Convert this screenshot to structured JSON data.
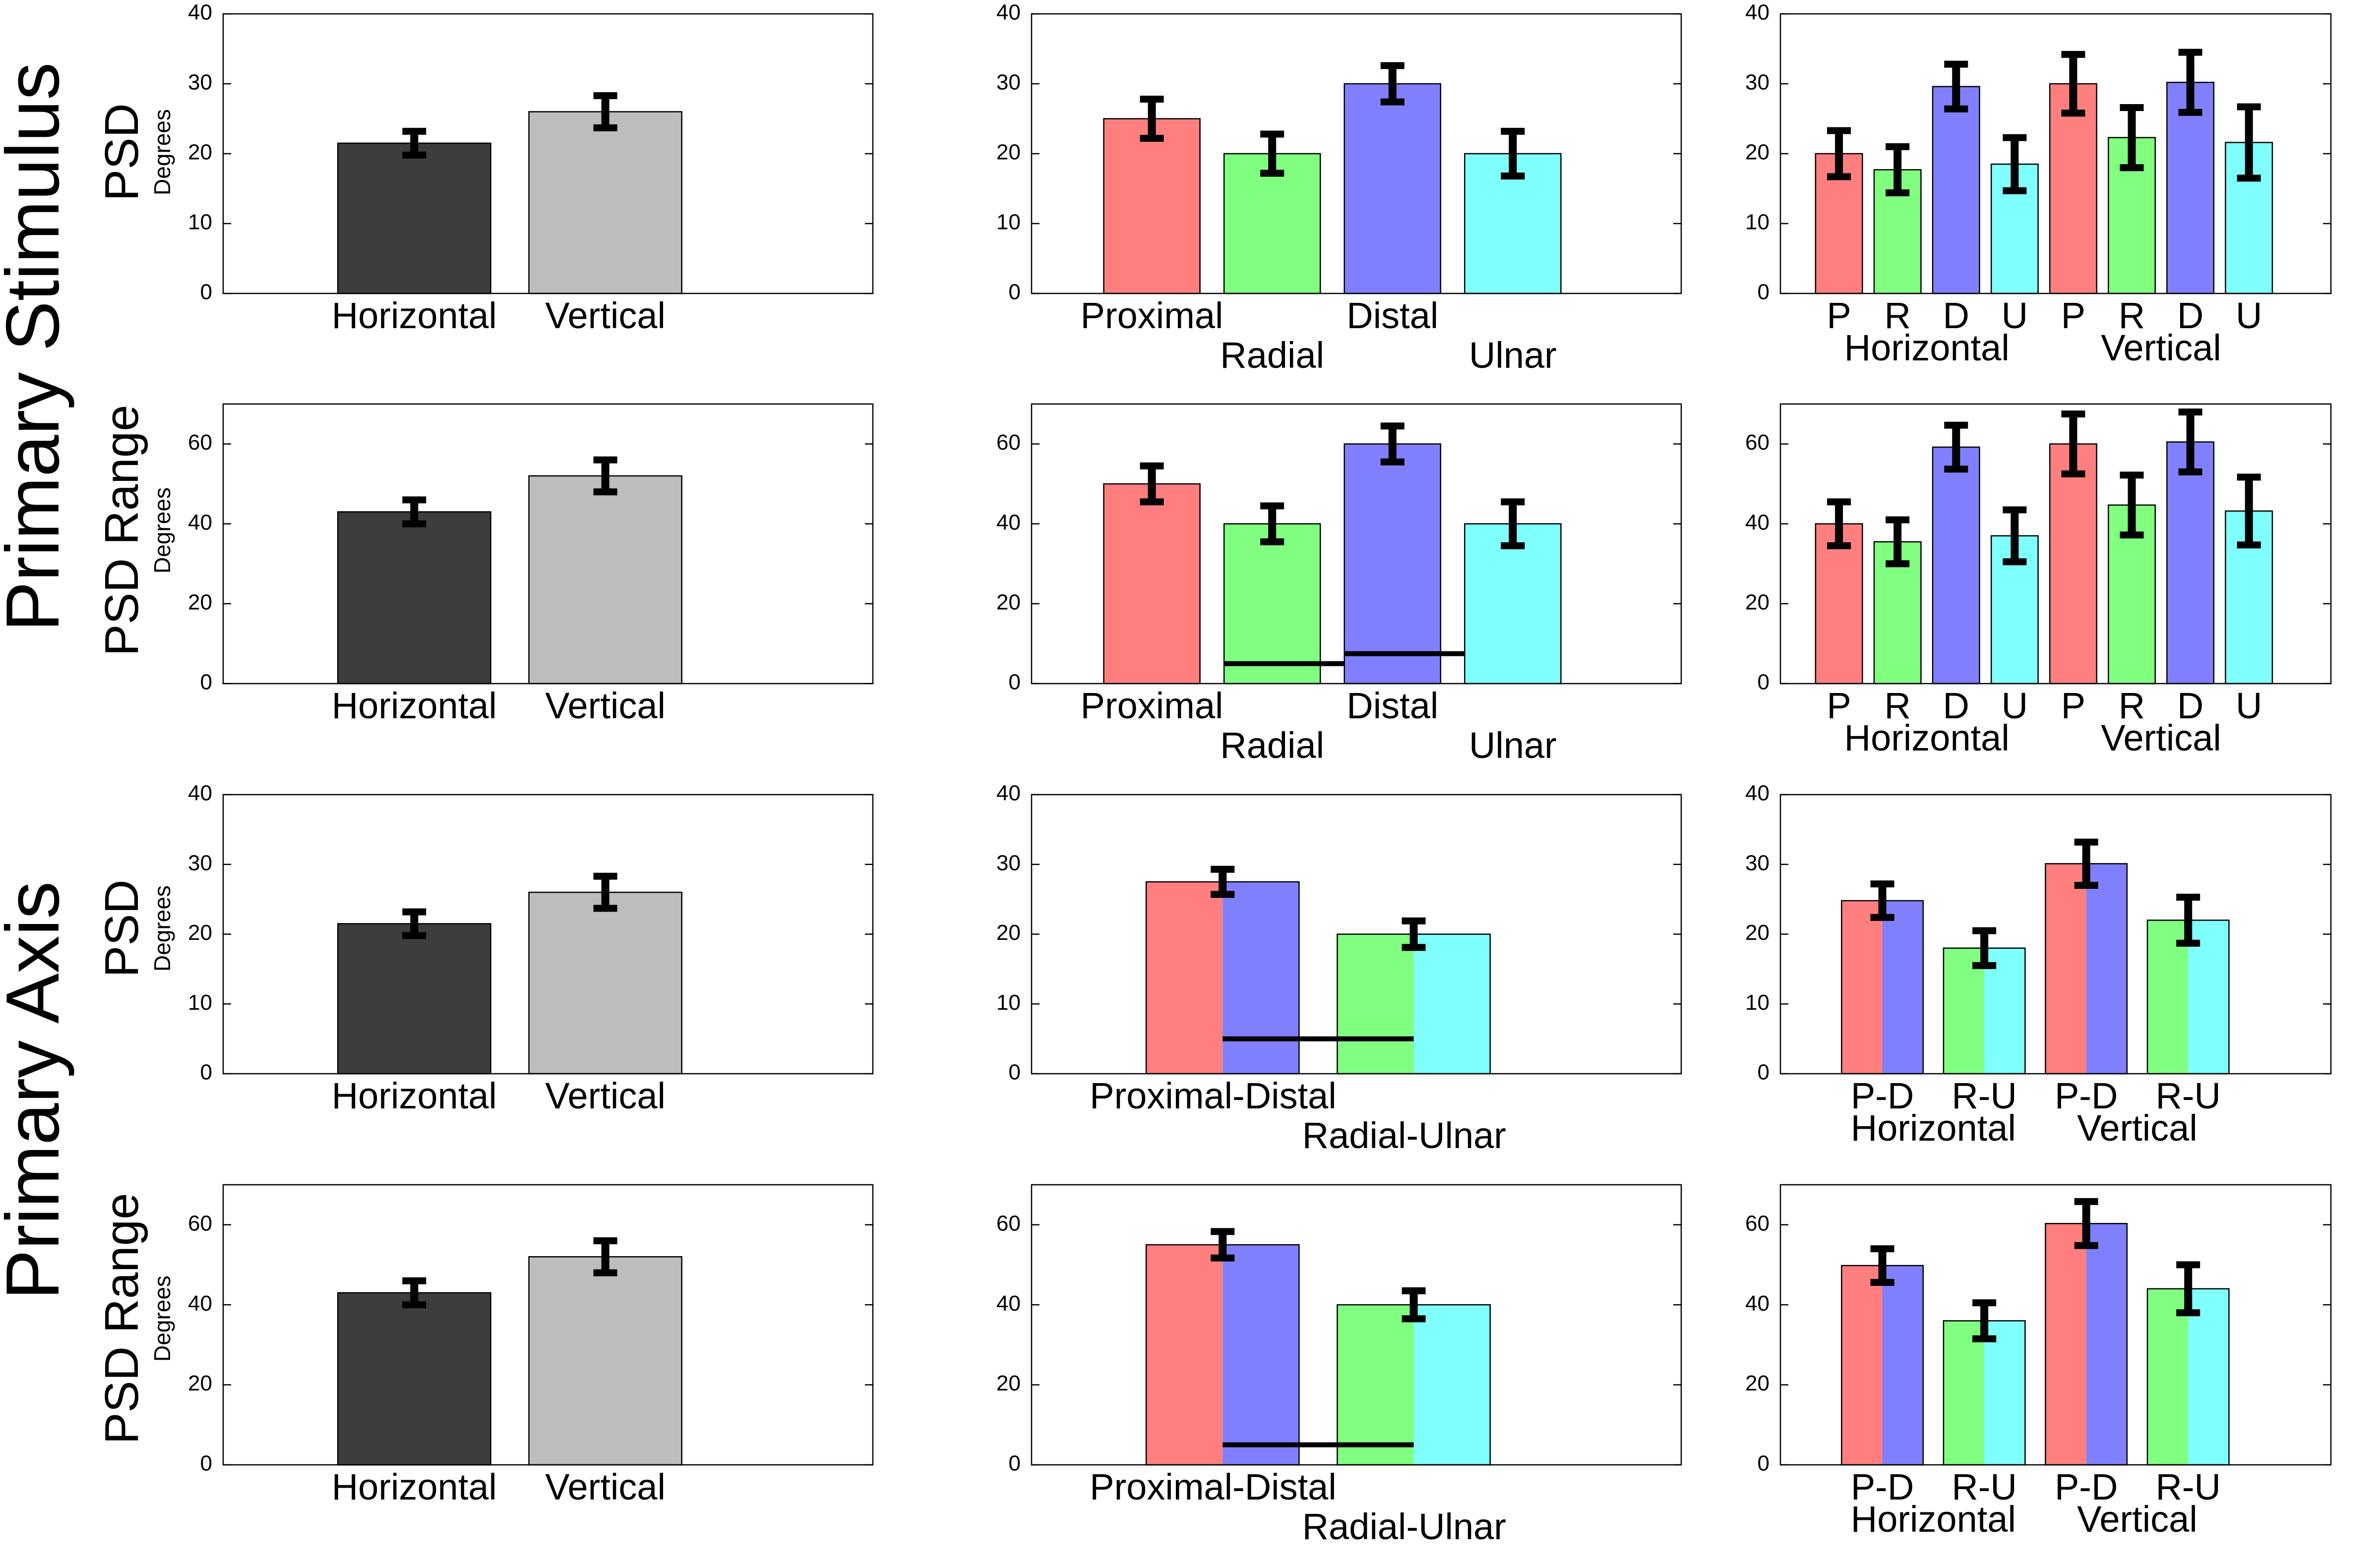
{
  "sections": [
    {
      "label": "Primary Stimulus",
      "rows": [
        0,
        1
      ]
    },
    {
      "label": "Primary Axis",
      "rows": [
        2,
        3
      ]
    }
  ],
  "row_labels": [
    {
      "main": "PSD",
      "sub": "Degrees"
    },
    {
      "main": "PSD Range",
      "sub": "Degrees"
    },
    {
      "main": "PSD",
      "sub": "Degrees"
    },
    {
      "main": "PSD Range",
      "sub": "Degrees"
    }
  ],
  "colors": {
    "dark": "#3d3d3d",
    "light": "#bdbdbd",
    "proximal": "#ff7f7f",
    "radial": "#80ff80",
    "distal": "#8080ff",
    "ulnar": "#80ffff"
  },
  "chart_data": [
    {
      "type": "bar",
      "row": 0,
      "col": 0,
      "ylim": [
        0,
        40
      ],
      "yticks": [
        0,
        10,
        20,
        30,
        40
      ],
      "xlim": [
        0,
        3.4
      ],
      "bars": [
        {
          "x": 1,
          "width": 0.8,
          "value": 21.5,
          "err": 1.7,
          "color": "dark"
        },
        {
          "x": 2,
          "width": 0.8,
          "value": 26,
          "err": 2.3,
          "color": "light"
        }
      ],
      "labels": [
        {
          "x": 1,
          "text": "Horizontal",
          "line": 0
        },
        {
          "x": 2,
          "text": "Vertical",
          "line": 0
        }
      ]
    },
    {
      "type": "bar",
      "row": 0,
      "col": 1,
      "ylim": [
        0,
        40
      ],
      "yticks": [
        0,
        10,
        20,
        30,
        40
      ],
      "xlim": [
        0,
        5.4
      ],
      "bars": [
        {
          "x": 1,
          "width": 0.8,
          "value": 25,
          "err": 2.8,
          "color": "proximal"
        },
        {
          "x": 2,
          "width": 0.8,
          "value": 20,
          "err": 2.8,
          "color": "radial"
        },
        {
          "x": 3,
          "width": 0.8,
          "value": 30,
          "err": 2.6,
          "color": "distal"
        },
        {
          "x": 4,
          "width": 0.8,
          "value": 20,
          "err": 3.2,
          "color": "ulnar"
        }
      ],
      "labels": [
        {
          "x": 1,
          "text": "Proximal",
          "line": 0
        },
        {
          "x": 2,
          "text": "Radial",
          "line": 1
        },
        {
          "x": 3,
          "text": "Distal",
          "line": 0
        },
        {
          "x": 4,
          "text": "Ulnar",
          "line": 1
        }
      ]
    },
    {
      "type": "bar",
      "row": 0,
      "col": 2,
      "ylim": [
        0,
        40
      ],
      "yticks": [
        0,
        10,
        20,
        30,
        40
      ],
      "xlim": [
        0,
        9.4
      ],
      "bars": [
        {
          "x": 1,
          "width": 0.8,
          "value": 20,
          "err": 3.3,
          "color": "proximal"
        },
        {
          "x": 2,
          "width": 0.8,
          "value": 17.7,
          "err": 3.3,
          "color": "radial"
        },
        {
          "x": 3,
          "width": 0.8,
          "value": 29.6,
          "err": 3.2,
          "color": "distal"
        },
        {
          "x": 4,
          "width": 0.8,
          "value": 18.5,
          "err": 3.8,
          "color": "ulnar"
        },
        {
          "x": 5,
          "width": 0.8,
          "value": 30,
          "err": 4.2,
          "color": "proximal"
        },
        {
          "x": 6,
          "width": 0.8,
          "value": 22.3,
          "err": 4.3,
          "color": "radial"
        },
        {
          "x": 7,
          "width": 0.8,
          "value": 30.2,
          "err": 4.3,
          "color": "distal"
        },
        {
          "x": 8,
          "width": 0.8,
          "value": 21.6,
          "err": 5.1,
          "color": "ulnar"
        }
      ],
      "labels": [
        {
          "x": 1,
          "text": "P",
          "line": 0
        },
        {
          "x": 2,
          "text": "R",
          "line": 0
        },
        {
          "x": 3,
          "text": "D",
          "line": 0
        },
        {
          "x": 4,
          "text": "U",
          "line": 0
        },
        {
          "x": 5,
          "text": "P",
          "line": 0
        },
        {
          "x": 6,
          "text": "R",
          "line": 0
        },
        {
          "x": 7,
          "text": "D",
          "line": 0
        },
        {
          "x": 8,
          "text": "U",
          "line": 0
        }
      ],
      "groups": [
        {
          "x": 2.5,
          "text": "Horizontal"
        },
        {
          "x": 6.5,
          "text": "Vertical"
        }
      ]
    },
    {
      "type": "bar",
      "row": 1,
      "col": 0,
      "ylim": [
        0,
        70
      ],
      "yticks": [
        0,
        20,
        40,
        60
      ],
      "xlim": [
        0,
        3.4
      ],
      "bars": [
        {
          "x": 1,
          "width": 0.8,
          "value": 43,
          "err": 3,
          "color": "dark"
        },
        {
          "x": 2,
          "width": 0.8,
          "value": 52,
          "err": 4,
          "color": "light"
        }
      ],
      "labels": [
        {
          "x": 1,
          "text": "Horizontal",
          "line": 0
        },
        {
          "x": 2,
          "text": "Vertical",
          "line": 0
        }
      ]
    },
    {
      "type": "bar",
      "row": 1,
      "col": 1,
      "ylim": [
        0,
        70
      ],
      "yticks": [
        0,
        20,
        40,
        60
      ],
      "xlim": [
        0,
        5.4
      ],
      "bars": [
        {
          "x": 1,
          "width": 0.8,
          "value": 50,
          "err": 4.5,
          "color": "proximal"
        },
        {
          "x": 2,
          "width": 0.8,
          "value": 40,
          "err": 4.5,
          "color": "radial"
        },
        {
          "x": 3,
          "width": 0.8,
          "value": 60,
          "err": 4.5,
          "color": "distal"
        },
        {
          "x": 4,
          "width": 0.8,
          "value": 40,
          "err": 5.5,
          "color": "ulnar"
        }
      ],
      "sig": [
        {
          "x1": 1.6,
          "x2": 2.6,
          "y": 5
        },
        {
          "x1": 2.6,
          "x2": 3.6,
          "y": 7.5
        }
      ],
      "labels": [
        {
          "x": 1,
          "text": "Proximal",
          "line": 0
        },
        {
          "x": 2,
          "text": "Radial",
          "line": 1
        },
        {
          "x": 3,
          "text": "Distal",
          "line": 0
        },
        {
          "x": 4,
          "text": "Ulnar",
          "line": 1
        }
      ]
    },
    {
      "type": "bar",
      "row": 1,
      "col": 2,
      "ylim": [
        0,
        70
      ],
      "yticks": [
        0,
        20,
        40,
        60
      ],
      "xlim": [
        0,
        9.4
      ],
      "bars": [
        {
          "x": 1,
          "width": 0.8,
          "value": 40,
          "err": 5.5,
          "color": "proximal"
        },
        {
          "x": 2,
          "width": 0.8,
          "value": 35.5,
          "err": 5.5,
          "color": "radial"
        },
        {
          "x": 3,
          "width": 0.8,
          "value": 59.2,
          "err": 5.5,
          "color": "distal"
        },
        {
          "x": 4,
          "width": 0.8,
          "value": 37,
          "err": 6.5,
          "color": "ulnar"
        },
        {
          "x": 5,
          "width": 0.8,
          "value": 60,
          "err": 7.5,
          "color": "proximal"
        },
        {
          "x": 6,
          "width": 0.8,
          "value": 44.7,
          "err": 7.5,
          "color": "radial"
        },
        {
          "x": 7,
          "width": 0.8,
          "value": 60.5,
          "err": 7.5,
          "color": "distal"
        },
        {
          "x": 8,
          "width": 0.8,
          "value": 43.2,
          "err": 8.5,
          "color": "ulnar"
        }
      ],
      "labels": [
        {
          "x": 1,
          "text": "P",
          "line": 0
        },
        {
          "x": 2,
          "text": "R",
          "line": 0
        },
        {
          "x": 3,
          "text": "D",
          "line": 0
        },
        {
          "x": 4,
          "text": "U",
          "line": 0
        },
        {
          "x": 5,
          "text": "P",
          "line": 0
        },
        {
          "x": 6,
          "text": "R",
          "line": 0
        },
        {
          "x": 7,
          "text": "D",
          "line": 0
        },
        {
          "x": 8,
          "text": "U",
          "line": 0
        }
      ],
      "groups": [
        {
          "x": 2.5,
          "text": "Horizontal"
        },
        {
          "x": 6.5,
          "text": "Vertical"
        }
      ]
    },
    {
      "type": "bar",
      "row": 2,
      "col": 0,
      "ylim": [
        0,
        40
      ],
      "yticks": [
        0,
        10,
        20,
        30,
        40
      ],
      "xlim": [
        0,
        3.4
      ],
      "bars": [
        {
          "x": 1,
          "width": 0.8,
          "value": 21.5,
          "err": 1.7,
          "color": "dark"
        },
        {
          "x": 2,
          "width": 0.8,
          "value": 26,
          "err": 2.3,
          "color": "light"
        }
      ],
      "labels": [
        {
          "x": 1,
          "text": "Horizontal",
          "line": 0
        },
        {
          "x": 2,
          "text": "Vertical",
          "line": 0
        }
      ]
    },
    {
      "type": "bar",
      "row": 2,
      "col": 1,
      "ylim": [
        0,
        40
      ],
      "yticks": [
        0,
        10,
        20,
        30,
        40
      ],
      "xlim": [
        0,
        3.4
      ],
      "bars": [
        {
          "x": 1,
          "width": 0.8,
          "value": 27.5,
          "err": 1.8,
          "color": [
            "proximal",
            "distal"
          ]
        },
        {
          "x": 2,
          "width": 0.8,
          "value": 20,
          "err": 1.9,
          "color": [
            "radial",
            "ulnar"
          ]
        }
      ],
      "sig": [
        {
          "x1": 1,
          "x2": 2,
          "y": 5
        }
      ],
      "labels": [
        {
          "x": 0.95,
          "text": "Proximal-Distal",
          "line": 0
        },
        {
          "x": 1.95,
          "text": "Radial-Ulnar",
          "line": 1
        }
      ]
    },
    {
      "type": "bar",
      "row": 2,
      "col": 2,
      "ylim": [
        0,
        40
      ],
      "yticks": [
        0,
        10,
        20,
        30,
        40
      ],
      "xlim": [
        0,
        5.4
      ],
      "bars": [
        {
          "x": 1,
          "width": 0.8,
          "value": 24.8,
          "err": 2.4,
          "color": [
            "proximal",
            "distal"
          ]
        },
        {
          "x": 2,
          "width": 0.8,
          "value": 18,
          "err": 2.5,
          "color": [
            "radial",
            "ulnar"
          ]
        },
        {
          "x": 3,
          "width": 0.8,
          "value": 30.1,
          "err": 3.1,
          "color": [
            "proximal",
            "distal"
          ]
        },
        {
          "x": 4,
          "width": 0.8,
          "value": 22,
          "err": 3.3,
          "color": [
            "radial",
            "ulnar"
          ]
        }
      ],
      "labels": [
        {
          "x": 1,
          "text": "P-D",
          "line": 0
        },
        {
          "x": 2,
          "text": "R-U",
          "line": 0
        },
        {
          "x": 3,
          "text": "P-D",
          "line": 0
        },
        {
          "x": 4,
          "text": "R-U",
          "line": 0
        }
      ],
      "groups": [
        {
          "x": 1.5,
          "text": "Horizontal"
        },
        {
          "x": 3.5,
          "text": "Vertical"
        }
      ]
    },
    {
      "type": "bar",
      "row": 3,
      "col": 0,
      "ylim": [
        0,
        70
      ],
      "yticks": [
        0,
        20,
        40,
        60
      ],
      "xlim": [
        0,
        3.4
      ],
      "bars": [
        {
          "x": 1,
          "width": 0.8,
          "value": 43,
          "err": 3,
          "color": "dark"
        },
        {
          "x": 2,
          "width": 0.8,
          "value": 52,
          "err": 4,
          "color": "light"
        }
      ],
      "labels": [
        {
          "x": 1,
          "text": "Horizontal",
          "line": 0
        },
        {
          "x": 2,
          "text": "Vertical",
          "line": 0
        }
      ]
    },
    {
      "type": "bar",
      "row": 3,
      "col": 1,
      "ylim": [
        0,
        70
      ],
      "yticks": [
        0,
        20,
        40,
        60
      ],
      "xlim": [
        0,
        3.4
      ],
      "bars": [
        {
          "x": 1,
          "width": 0.8,
          "value": 55,
          "err": 3.3,
          "color": [
            "proximal",
            "distal"
          ]
        },
        {
          "x": 2,
          "width": 0.8,
          "value": 40,
          "err": 3.5,
          "color": [
            "radial",
            "ulnar"
          ]
        }
      ],
      "sig": [
        {
          "x1": 1,
          "x2": 2,
          "y": 5
        }
      ],
      "labels": [
        {
          "x": 0.95,
          "text": "Proximal-Distal",
          "line": 0
        },
        {
          "x": 1.95,
          "text": "Radial-Ulnar",
          "line": 1
        }
      ]
    },
    {
      "type": "bar",
      "row": 3,
      "col": 2,
      "ylim": [
        0,
        70
      ],
      "yticks": [
        0,
        20,
        40,
        60
      ],
      "xlim": [
        0,
        5.4
      ],
      "bars": [
        {
          "x": 1,
          "width": 0.8,
          "value": 49.8,
          "err": 4.2,
          "color": [
            "proximal",
            "distal"
          ]
        },
        {
          "x": 2,
          "width": 0.8,
          "value": 36,
          "err": 4.5,
          "color": [
            "radial",
            "ulnar"
          ]
        },
        {
          "x": 3,
          "width": 0.8,
          "value": 60.3,
          "err": 5.5,
          "color": [
            "proximal",
            "distal"
          ]
        },
        {
          "x": 4,
          "width": 0.8,
          "value": 44,
          "err": 6,
          "color": [
            "radial",
            "ulnar"
          ]
        }
      ],
      "labels": [
        {
          "x": 1,
          "text": "P-D",
          "line": 0
        },
        {
          "x": 2,
          "text": "R-U",
          "line": 0
        },
        {
          "x": 3,
          "text": "P-D",
          "line": 0
        },
        {
          "x": 4,
          "text": "R-U",
          "line": 0
        }
      ],
      "groups": [
        {
          "x": 1.5,
          "text": "Horizontal"
        },
        {
          "x": 3.5,
          "text": "Vertical"
        }
      ]
    }
  ]
}
